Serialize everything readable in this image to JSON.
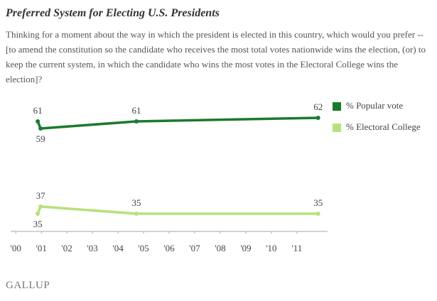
{
  "chart_data": {
    "type": "line",
    "title": "Preferred System for Electing U.S. Presidents",
    "subtitle": "Thinking for a moment about the way in which the president is elected in this country, which would you prefer -- [to amend the constitution so the candidate who receives the most total votes nationwide wins the election, (or) to keep the current system, in which the candidate who wins the most votes in the Electoral College wins the election]?",
    "x": [
      2000.86,
      2000.97,
      2004.72,
      2011.83
    ],
    "series": [
      {
        "name": "% Popular vote",
        "color": "#1a7a2e",
        "values": [
          61,
          59,
          61,
          62
        ]
      },
      {
        "name": "% Electoral College",
        "color": "#b8e07c",
        "values": [
          35,
          37,
          35,
          35
        ]
      }
    ],
    "xlim": [
      1999.8,
      2012.2
    ],
    "xticks": [
      {
        "value": 2000,
        "label": "'00"
      },
      {
        "value": 2001,
        "label": "'01"
      },
      {
        "value": 2002,
        "label": "'02"
      },
      {
        "value": 2003,
        "label": "'03"
      },
      {
        "value": 2004,
        "label": "'04"
      },
      {
        "value": 2005,
        "label": "'05"
      },
      {
        "value": 2006,
        "label": "'06"
      },
      {
        "value": 2007,
        "label": "'07"
      },
      {
        "value": 2008,
        "label": "'08"
      },
      {
        "value": 2009,
        "label": "'09"
      },
      {
        "value": 2010,
        "label": "'10"
      },
      {
        "value": 2011,
        "label": "'11"
      }
    ],
    "ylim": [
      30,
      68
    ],
    "source": "GALLUP"
  }
}
